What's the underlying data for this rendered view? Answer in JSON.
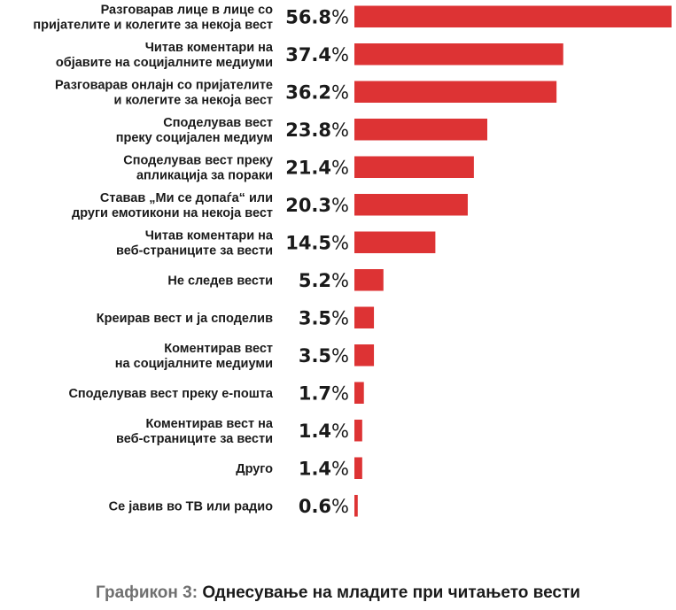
{
  "chart_data": {
    "type": "bar",
    "orientation": "horizontal",
    "categories": [
      [
        "Разговарав лице в лице со",
        "пријателите и колегите за некоја вест"
      ],
      [
        "Читав коментари на",
        "објавите на социјалните медиуми"
      ],
      [
        "Разговарав онлајн со пријателите",
        "и колегите за некоја вест"
      ],
      [
        "Споделував вест",
        "преку социјален медиум"
      ],
      [
        "Споделував вест преку",
        "апликација за пораки"
      ],
      [
        "Ставав „Ми се допаѓа“ или",
        "други емотикони на некоја вест"
      ],
      [
        "Читав коментари на",
        "веб-страниците за вести"
      ],
      [
        "Не следев вести"
      ],
      [
        "Креирав вест и ја споделив"
      ],
      [
        "Коментирав вест",
        "на социјалните медиуми"
      ],
      [
        "Споделував вест преку е-пошта"
      ],
      [
        "Коментирав вест на",
        "веб-страниците за вести"
      ],
      [
        "Друго"
      ],
      [
        "Се јавив во ТВ или радио"
      ]
    ],
    "values": [
      56.8,
      37.4,
      36.2,
      23.8,
      21.4,
      20.3,
      14.5,
      5.2,
      3.5,
      3.5,
      1.7,
      1.4,
      1.4,
      0.6
    ],
    "value_labels": [
      "56.8",
      "37.4",
      "36.2",
      "23.8",
      "21.4",
      "20.3",
      "14.5",
      "5.2",
      "3.5",
      "3.5",
      "1.7",
      "1.4",
      "1.4",
      "0.6"
    ],
    "unit": "%",
    "xlim": [
      0,
      56.8
    ],
    "grid": false,
    "legend": "none",
    "bar_color": "#dd3334"
  },
  "caption": {
    "prefix": "Графикон 3:",
    "title": "Однесување на младите при читањето вести"
  }
}
